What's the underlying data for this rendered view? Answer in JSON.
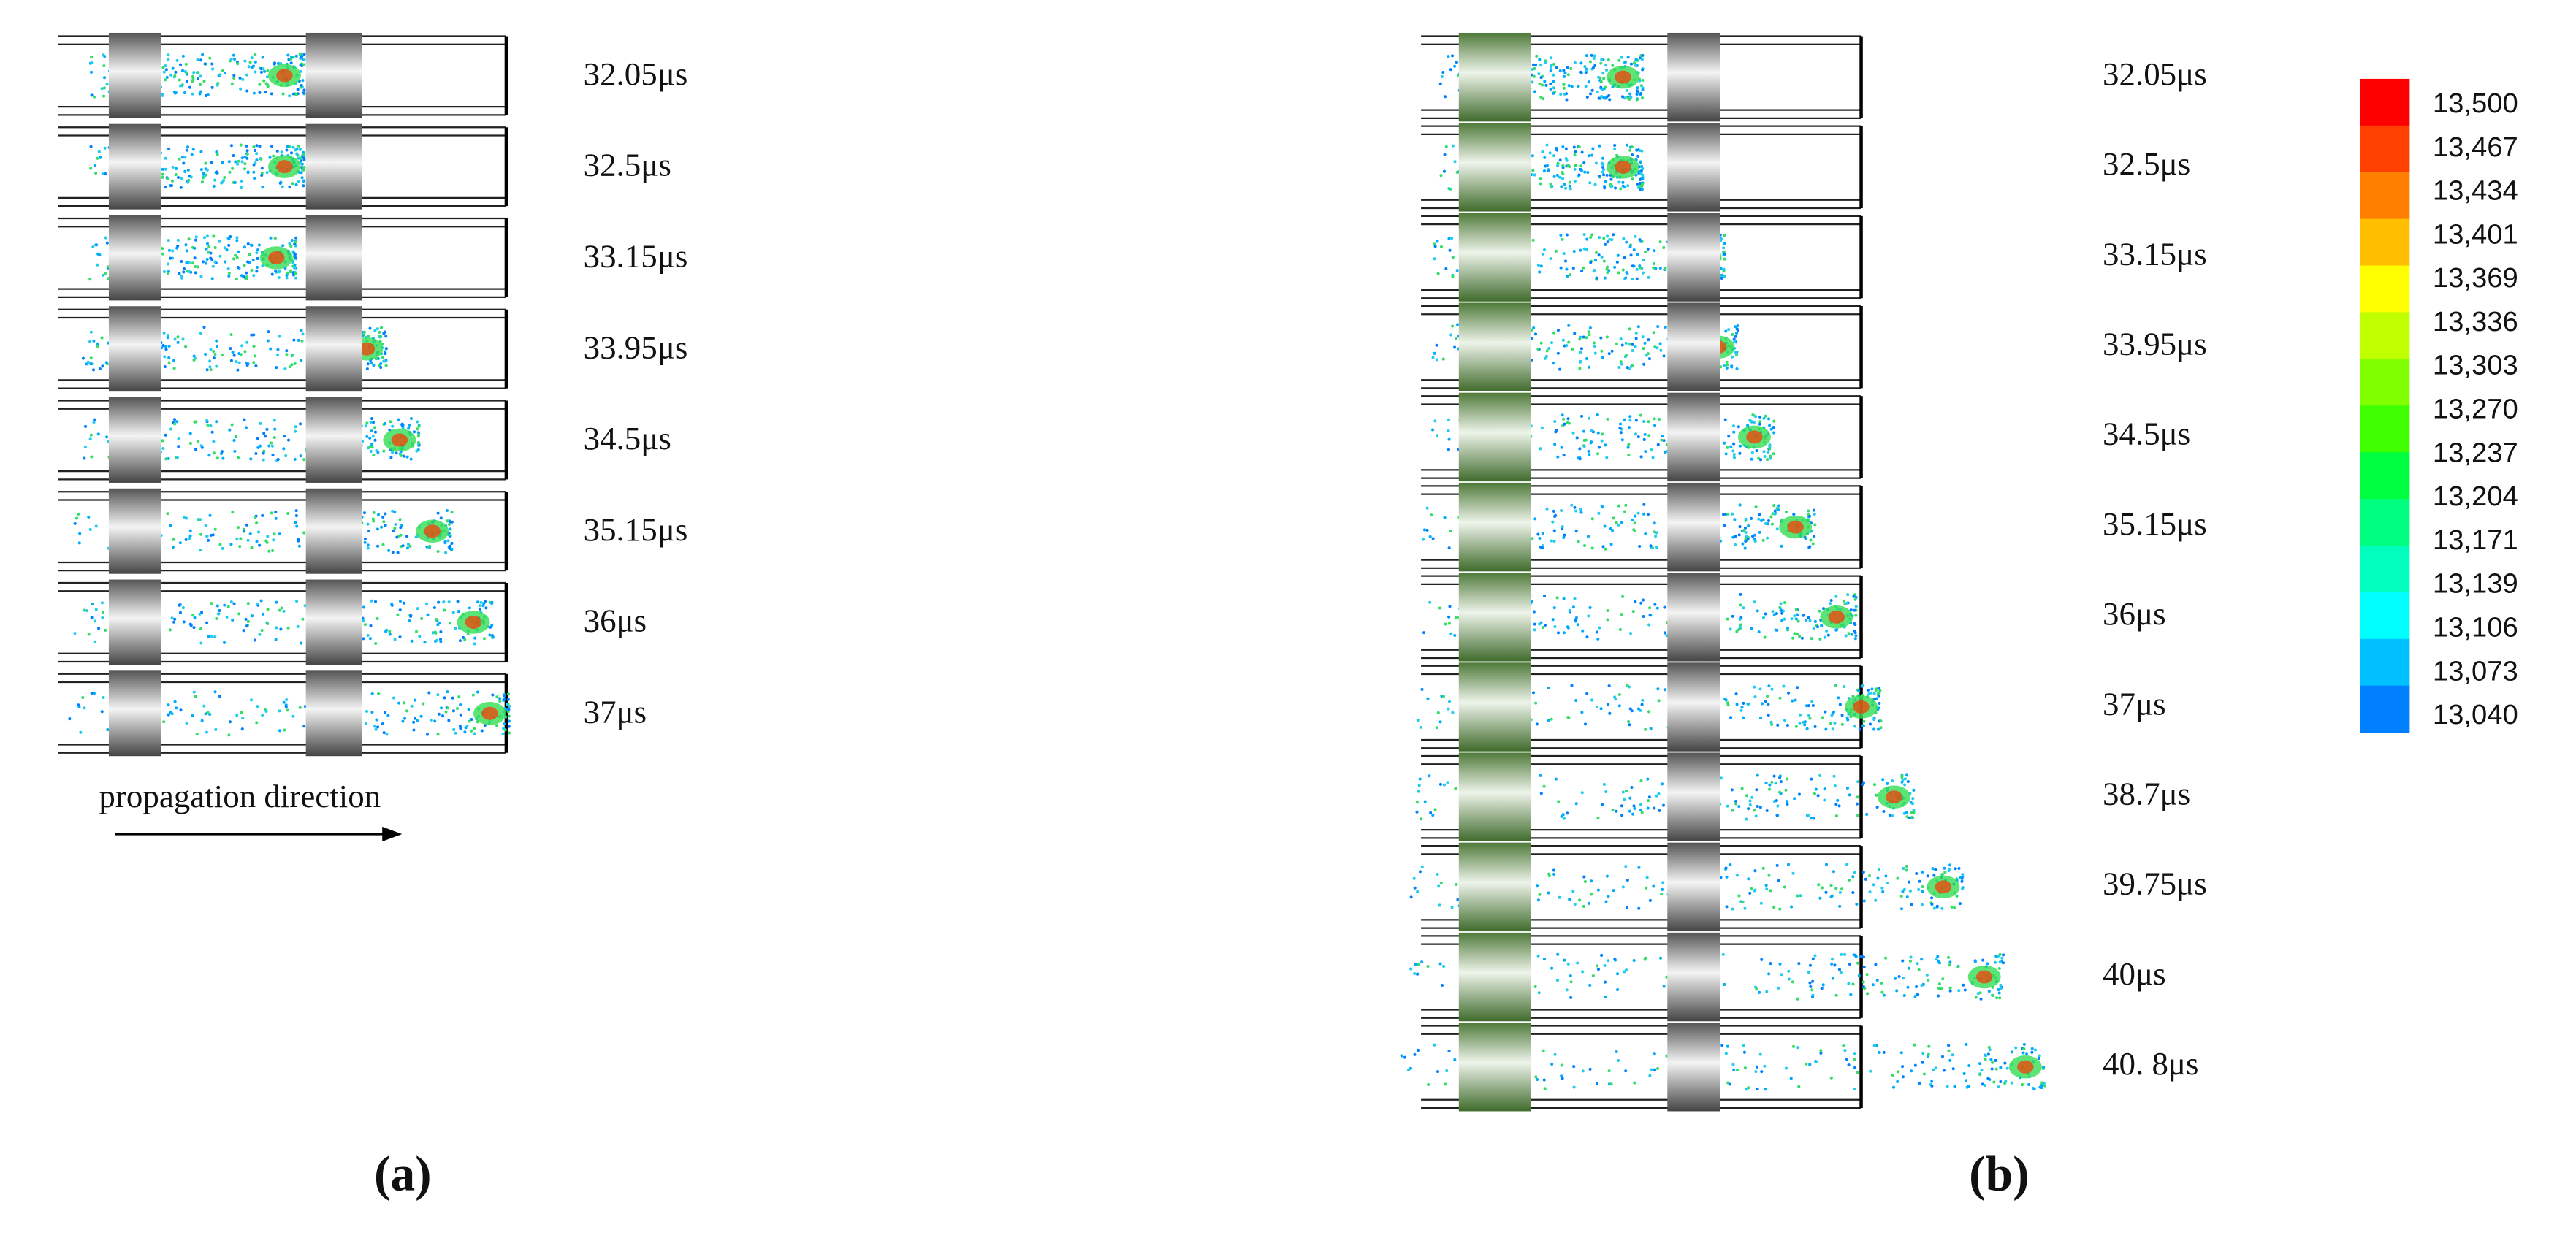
{
  "panel_a": {
    "label": "(a)",
    "caption": "propagation direction",
    "frames": [
      "32.05μs",
      "32.5μs",
      "33.15μs",
      "33.95μs",
      "34.5μs",
      "35.15μs",
      "36μs",
      "37μs"
    ]
  },
  "panel_b": {
    "label": "(b)",
    "frames": [
      "32.05μs",
      "32.5μs",
      "33.15μs",
      "33.95μs",
      "34.5μs",
      "35.15μs",
      "36μs",
      "37μs",
      "38.7μs",
      "39.75μs",
      "40μs",
      "40. 8μs"
    ],
    "colorbar": {
      "labels": [
        "13,500",
        "13,467",
        "13,434",
        "13,401",
        "13,369",
        "13,336",
        "13,303",
        "13,270",
        "13,237",
        "13,204",
        "13,171",
        "13,139",
        "13,106",
        "13,073",
        "13,040"
      ],
      "colors": [
        "#ff0000",
        "#ff4000",
        "#ff8000",
        "#ffbf00",
        "#ffff00",
        "#bfff00",
        "#80ff00",
        "#40ff00",
        "#00ff40",
        "#00ff80",
        "#00ffbf",
        "#00ffff",
        "#00bfff",
        "#0080ff",
        "#0000ff"
      ]
    }
  }
}
